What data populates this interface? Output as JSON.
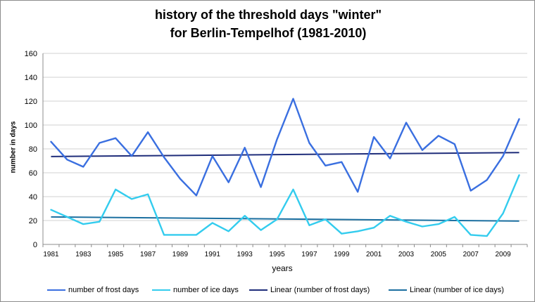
{
  "chart_data": {
    "type": "line",
    "title_line1": "history of the threshold days \"winter\"",
    "title_line2": "for Berlin-Tempelhof  (1981-2010)",
    "xlabel": "years",
    "ylabel": "number in days",
    "ylim": [
      0,
      160
    ],
    "yticks": [
      "0",
      "20",
      "40",
      "60",
      "80",
      "100",
      "120",
      "140",
      "160"
    ],
    "x": [
      1981,
      1982,
      1983,
      1984,
      1985,
      1986,
      1987,
      1988,
      1989,
      1990,
      1991,
      1992,
      1993,
      1994,
      1995,
      1996,
      1997,
      1998,
      1999,
      2000,
      2001,
      2002,
      2003,
      2004,
      2005,
      2006,
      2007,
      2008,
      2009,
      2010
    ],
    "xticks": [
      "1981",
      "1983",
      "1985",
      "1987",
      "1989",
      "1991",
      "1993",
      "1995",
      "1997",
      "1999",
      "2001",
      "2003",
      "2005",
      "2007",
      "2009"
    ],
    "grid": true,
    "legend_position": "bottom",
    "series": [
      {
        "name": "number of frost days",
        "color": "#3a6fe0",
        "values": [
          86,
          71,
          65,
          85,
          89,
          74,
          94,
          73,
          55,
          41,
          74,
          52,
          81,
          48,
          88,
          122,
          85,
          66,
          69,
          44,
          90,
          72,
          102,
          79,
          91,
          84,
          45,
          54,
          74,
          105
        ]
      },
      {
        "name": "number of ice days",
        "color": "#33ccee",
        "values": [
          29,
          23,
          17,
          19,
          46,
          38,
          42,
          8,
          8,
          8,
          18,
          11,
          24,
          12,
          21,
          46,
          16,
          21,
          9,
          11,
          14,
          24,
          19,
          15,
          17,
          23,
          8,
          7,
          26,
          58
        ]
      },
      {
        "name": "Linear (number of frost days)",
        "color": "#1f2d7a",
        "trend": "linear",
        "of": 0
      },
      {
        "name": "Linear (number of ice days)",
        "color": "#1b6fa0",
        "trend": "linear",
        "of": 1
      }
    ]
  }
}
